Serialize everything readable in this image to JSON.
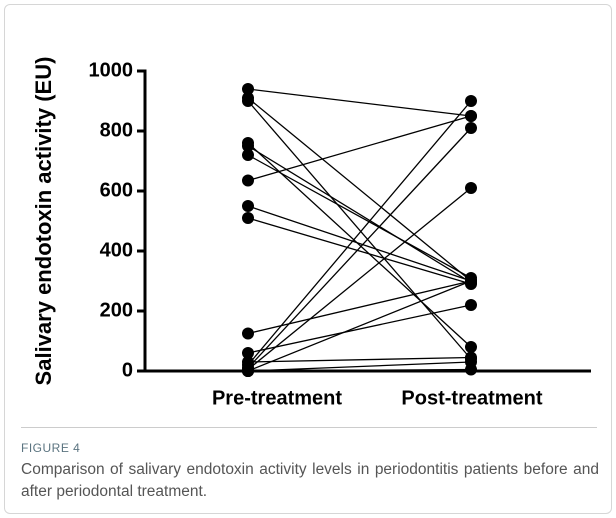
{
  "chart_data": {
    "type": "paired-dot",
    "y_label": "Salivary endotoxin activity (EU)",
    "categories": [
      "Pre-treatment",
      "Post-treatment"
    ],
    "color": "#000000",
    "series": [
      {
        "values": [
          940,
          850
        ]
      },
      {
        "values": [
          910,
          300
        ]
      },
      {
        "values": [
          900,
          40
        ]
      },
      {
        "values": [
          760,
          80
        ]
      },
      {
        "values": [
          750,
          295
        ]
      },
      {
        "values": [
          720,
          310
        ]
      },
      {
        "values": [
          635,
          850
        ]
      },
      {
        "values": [
          550,
          300
        ]
      },
      {
        "values": [
          510,
          290
        ]
      },
      {
        "values": [
          125,
          300
        ]
      },
      {
        "values": [
          60,
          220
        ]
      },
      {
        "values": [
          20,
          900
        ]
      },
      {
        "values": [
          10,
          810
        ]
      },
      {
        "values": [
          5,
          610
        ]
      },
      {
        "values": [
          0,
          300
        ]
      },
      {
        "values": [
          0,
          30
        ]
      },
      {
        "values": [
          0,
          5
        ]
      },
      {
        "values": [
          30,
          45
        ]
      }
    ],
    "ylim": [
      0,
      1000
    ],
    "yticks": [
      0,
      200,
      400,
      600,
      800,
      1000
    ]
  },
  "caption": {
    "label": "FIGURE 4",
    "text": "Comparison of salivary endotoxin activity levels in periodontitis patients before and after periodontal treatment."
  }
}
